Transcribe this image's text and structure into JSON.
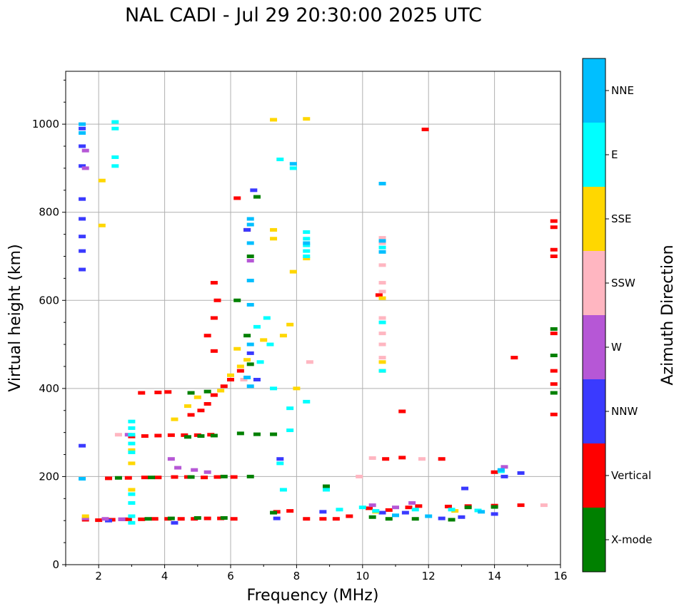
{
  "chart_data": {
    "type": "scatter",
    "title": "NAL CADI - Jul 29 20:30:00 2025 UTC",
    "xlabel": "Frequency (MHz)",
    "ylabel": "Virtual height (km)",
    "xlim": [
      1,
      16
    ],
    "ylim": [
      0,
      1120
    ],
    "xticks": [
      2,
      4,
      6,
      8,
      10,
      12,
      14,
      16
    ],
    "yticks": [
      0,
      200,
      400,
      600,
      800,
      1000
    ],
    "grid": true,
    "colorbar": {
      "label": "Azimuth Direction",
      "categories": [
        {
          "name": "X-mode",
          "color": "#008000"
        },
        {
          "name": "Vertical",
          "color": "#ff0000"
        },
        {
          "name": "NNW",
          "color": "#3a3aff"
        },
        {
          "name": "W",
          "color": "#b657d6"
        },
        {
          "name": "SSW",
          "color": "#ffb6c1"
        },
        {
          "name": "SSE",
          "color": "#ffd700"
        },
        {
          "name": "E",
          "color": "#00ffff"
        },
        {
          "name": "NNE",
          "color": "#00bfff"
        }
      ]
    },
    "series": [
      {
        "name": "Vertical",
        "color": "#ff0000",
        "points": [
          [
            1.6,
            102
          ],
          [
            2.0,
            101
          ],
          [
            2.4,
            102
          ],
          [
            2.9,
            103
          ],
          [
            3.3,
            103
          ],
          [
            3.7,
            104
          ],
          [
            4.1,
            104
          ],
          [
            4.5,
            104
          ],
          [
            4.9,
            104
          ],
          [
            5.3,
            105
          ],
          [
            5.7,
            105
          ],
          [
            6.1,
            104
          ],
          [
            7.4,
            120
          ],
          [
            7.8,
            122
          ],
          [
            8.3,
            104
          ],
          [
            8.8,
            104
          ],
          [
            9.2,
            104
          ],
          [
            9.6,
            110
          ],
          [
            10.2,
            128
          ],
          [
            10.8,
            124
          ],
          [
            11.4,
            130
          ],
          [
            11.7,
            133
          ],
          [
            12.6,
            132
          ],
          [
            13.2,
            133
          ],
          [
            14.0,
            134
          ],
          [
            14.8,
            135
          ],
          [
            2.3,
            196
          ],
          [
            2.9,
            197
          ],
          [
            3.4,
            198
          ],
          [
            3.8,
            198
          ],
          [
            4.3,
            199
          ],
          [
            4.7,
            199
          ],
          [
            5.2,
            198
          ],
          [
            5.6,
            199
          ],
          [
            6.1,
            199
          ],
          [
            3.0,
            291
          ],
          [
            3.4,
            292
          ],
          [
            3.8,
            293
          ],
          [
            4.2,
            294
          ],
          [
            4.6,
            294
          ],
          [
            5.0,
            294
          ],
          [
            5.4,
            295
          ],
          [
            3.3,
            390
          ],
          [
            3.8,
            391
          ],
          [
            4.1,
            392
          ],
          [
            4.8,
            340
          ],
          [
            5.1,
            350
          ],
          [
            5.3,
            365
          ],
          [
            5.5,
            385
          ],
          [
            5.8,
            405
          ],
          [
            6.0,
            420
          ],
          [
            6.3,
            440
          ],
          [
            5.5,
            485
          ],
          [
            5.3,
            520
          ],
          [
            5.5,
            560
          ],
          [
            5.6,
            600
          ],
          [
            5.5,
            640
          ],
          [
            6.2,
            832
          ],
          [
            6.5,
            760
          ],
          [
            10.7,
            240
          ],
          [
            11.2,
            243
          ],
          [
            12.4,
            240
          ],
          [
            14.0,
            210
          ],
          [
            11.2,
            348
          ],
          [
            10.5,
            612
          ],
          [
            11.9,
            988
          ],
          [
            14.6,
            470
          ],
          [
            15.8,
            341
          ],
          [
            15.8,
            410
          ],
          [
            15.8,
            440
          ],
          [
            15.8,
            525
          ],
          [
            15.8,
            700
          ],
          [
            15.8,
            715
          ],
          [
            15.8,
            766
          ],
          [
            15.8,
            780
          ]
        ]
      },
      {
        "name": "X-mode",
        "color": "#008000",
        "points": [
          [
            3.5,
            104
          ],
          [
            4.2,
            105
          ],
          [
            5.0,
            106
          ],
          [
            5.8,
            106
          ],
          [
            7.3,
            118
          ],
          [
            10.3,
            108
          ],
          [
            10.8,
            104
          ],
          [
            11.6,
            104
          ],
          [
            12.7,
            102
          ],
          [
            13.2,
            130
          ],
          [
            14.0,
            131
          ],
          [
            2.6,
            197
          ],
          [
            3.6,
            198
          ],
          [
            4.8,
            199
          ],
          [
            5.8,
            200
          ],
          [
            6.6,
            200
          ],
          [
            4.7,
            290
          ],
          [
            5.1,
            292
          ],
          [
            5.5,
            293
          ],
          [
            6.3,
            298
          ],
          [
            6.8,
            296
          ],
          [
            7.3,
            296
          ],
          [
            4.8,
            390
          ],
          [
            5.3,
            393
          ],
          [
            6.6,
            455
          ],
          [
            6.5,
            520
          ],
          [
            6.2,
            600
          ],
          [
            6.6,
            700
          ],
          [
            6.8,
            835
          ],
          [
            15.8,
            390
          ],
          [
            15.8,
            475
          ],
          [
            15.8,
            535
          ],
          [
            8.9,
            178
          ]
        ]
      },
      {
        "name": "NNW",
        "color": "#3a3aff",
        "points": [
          [
            1.5,
            990
          ],
          [
            1.5,
            950
          ],
          [
            1.5,
            905
          ],
          [
            1.5,
            830
          ],
          [
            1.5,
            785
          ],
          [
            1.5,
            745
          ],
          [
            1.5,
            712
          ],
          [
            1.5,
            670
          ],
          [
            1.5,
            270
          ],
          [
            2.3,
            100
          ],
          [
            2.7,
            103
          ],
          [
            4.3,
            95
          ],
          [
            7.4,
            105
          ],
          [
            8.8,
            120
          ],
          [
            10.6,
            118
          ],
          [
            11.3,
            118
          ],
          [
            12.4,
            105
          ],
          [
            13.0,
            108
          ],
          [
            13.1,
            173
          ],
          [
            14.0,
            115
          ],
          [
            14.3,
            200
          ],
          [
            14.8,
            208
          ],
          [
            7.5,
            240
          ],
          [
            6.7,
            850
          ],
          [
            6.5,
            760
          ],
          [
            6.6,
            480
          ],
          [
            6.8,
            420
          ]
        ]
      },
      {
        "name": "W",
        "color": "#b657d6",
        "points": [
          [
            1.6,
            105
          ],
          [
            2.2,
            104
          ],
          [
            2.7,
            103
          ],
          [
            4.4,
            220
          ],
          [
            4.9,
            215
          ],
          [
            5.3,
            210
          ],
          [
            10.3,
            135
          ],
          [
            11.0,
            130
          ],
          [
            11.5,
            140
          ],
          [
            14.3,
            222
          ],
          [
            6.6,
            690
          ],
          [
            1.6,
            940
          ],
          [
            1.6,
            900
          ],
          [
            2.9,
            295
          ],
          [
            4.2,
            240
          ]
        ]
      },
      {
        "name": "SSW",
        "color": "#ffb6c1",
        "points": [
          [
            10.6,
            440
          ],
          [
            10.6,
            470
          ],
          [
            10.6,
            500
          ],
          [
            10.6,
            525
          ],
          [
            10.6,
            560
          ],
          [
            10.6,
            620
          ],
          [
            10.6,
            640
          ],
          [
            10.6,
            680
          ],
          [
            10.6,
            730
          ],
          [
            10.6,
            742
          ],
          [
            8.4,
            460
          ],
          [
            10.3,
            242
          ],
          [
            11.8,
            240
          ],
          [
            15.5,
            135
          ],
          [
            9.9,
            200
          ],
          [
            2.6,
            295
          ],
          [
            6.4,
            420
          ]
        ]
      },
      {
        "name": "SSE",
        "color": "#ffd700",
        "points": [
          [
            10.6,
            440
          ],
          [
            10.6,
            460
          ],
          [
            10.6,
            605
          ],
          [
            8.3,
            1012
          ],
          [
            7.3,
            1010
          ],
          [
            2.1,
            872
          ],
          [
            2.1,
            770
          ],
          [
            7.3,
            760
          ],
          [
            7.3,
            740
          ],
          [
            7.9,
            665
          ],
          [
            8.3,
            695
          ],
          [
            7.8,
            545
          ],
          [
            7.6,
            520
          ],
          [
            7.0,
            510
          ],
          [
            6.2,
            490
          ],
          [
            6.5,
            465
          ],
          [
            6.3,
            450
          ],
          [
            6.0,
            430
          ],
          [
            5.7,
            395
          ],
          [
            5.0,
            380
          ],
          [
            4.7,
            360
          ],
          [
            4.3,
            330
          ],
          [
            3.0,
            260
          ],
          [
            3.0,
            230
          ],
          [
            3.0,
            170
          ],
          [
            1.6,
            110
          ],
          [
            10.4,
            120
          ],
          [
            12.8,
            122
          ],
          [
            8.0,
            400
          ]
        ]
      },
      {
        "name": "E",
        "color": "#00ffff",
        "points": [
          [
            2.5,
            1005
          ],
          [
            2.5,
            990
          ],
          [
            2.5,
            925
          ],
          [
            2.5,
            905
          ],
          [
            8.3,
            755
          ],
          [
            8.3,
            740
          ],
          [
            8.3,
            725
          ],
          [
            8.3,
            712
          ],
          [
            8.3,
            700
          ],
          [
            7.9,
            900
          ],
          [
            7.8,
            355
          ],
          [
            7.8,
            305
          ],
          [
            8.3,
            370
          ],
          [
            7.5,
            920
          ],
          [
            10.6,
            720
          ],
          [
            10.6,
            550
          ],
          [
            10.6,
            440
          ],
          [
            3.0,
            325
          ],
          [
            3.0,
            310
          ],
          [
            3.0,
            295
          ],
          [
            3.0,
            275
          ],
          [
            3.0,
            255
          ],
          [
            3.0,
            160
          ],
          [
            3.0,
            140
          ],
          [
            3.0,
            110
          ],
          [
            3.0,
            95
          ],
          [
            7.1,
            560
          ],
          [
            7.2,
            500
          ],
          [
            6.8,
            540
          ],
          [
            6.9,
            460
          ],
          [
            7.3,
            400
          ],
          [
            7.5,
            230
          ],
          [
            7.6,
            170
          ],
          [
            8.9,
            170
          ],
          [
            9.3,
            125
          ],
          [
            10.0,
            130
          ],
          [
            10.4,
            122
          ],
          [
            11.6,
            125
          ],
          [
            12.7,
            125
          ],
          [
            13.5,
            123
          ],
          [
            14.2,
            212
          ]
        ]
      },
      {
        "name": "NNE",
        "color": "#00bfff",
        "points": [
          [
            1.5,
            1000
          ],
          [
            1.5,
            980
          ],
          [
            6.6,
            785
          ],
          [
            6.6,
            772
          ],
          [
            6.6,
            730
          ],
          [
            6.6,
            645
          ],
          [
            6.6,
            590
          ],
          [
            6.6,
            500
          ],
          [
            6.5,
            425
          ],
          [
            6.6,
            405
          ],
          [
            8.3,
            730
          ],
          [
            10.6,
            735
          ],
          [
            10.6,
            710
          ],
          [
            7.9,
            910
          ],
          [
            1.5,
            195
          ],
          [
            11.0,
            112
          ],
          [
            12.0,
            110
          ],
          [
            13.6,
            120
          ],
          [
            14.2,
            215
          ],
          [
            10.6,
            865
          ]
        ]
      }
    ]
  }
}
